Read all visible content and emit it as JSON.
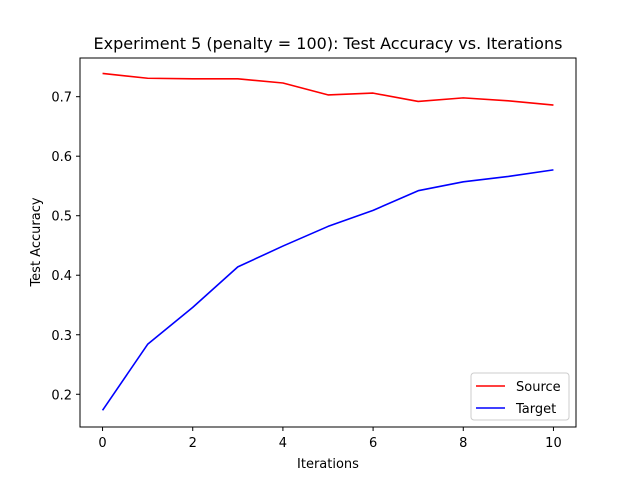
{
  "chart_data": {
    "type": "line",
    "title": "Experiment 5 (penalty = 100): Test Accuracy vs. Iterations",
    "xlabel": "Iterations",
    "ylabel": "Test Accuracy",
    "x": [
      0,
      1,
      2,
      3,
      4,
      5,
      6,
      7,
      8,
      9,
      10
    ],
    "xlim": [
      -0.5,
      10.5
    ],
    "ylim": [
      0.145,
      0.765
    ],
    "xticks": [
      0,
      2,
      4,
      6,
      8,
      10
    ],
    "yticks": [
      0.2,
      0.3,
      0.4,
      0.5,
      0.6,
      0.7
    ],
    "xtick_labels": [
      "0",
      "2",
      "4",
      "6",
      "8",
      "10"
    ],
    "ytick_labels": [
      "0.2",
      "0.3",
      "0.4",
      "0.5",
      "0.6",
      "0.7"
    ],
    "grid": false,
    "legend_position": "lower-right",
    "series": [
      {
        "name": "Source",
        "color": "#ff0000",
        "values": [
          0.739,
          0.731,
          0.73,
          0.73,
          0.723,
          0.703,
          0.706,
          0.692,
          0.698,
          0.693,
          0.686
        ]
      },
      {
        "name": "Target",
        "color": "#0000ff",
        "values": [
          0.173,
          0.284,
          0.346,
          0.414,
          0.449,
          0.482,
          0.509,
          0.542,
          0.557,
          0.566,
          0.577
        ]
      }
    ]
  }
}
